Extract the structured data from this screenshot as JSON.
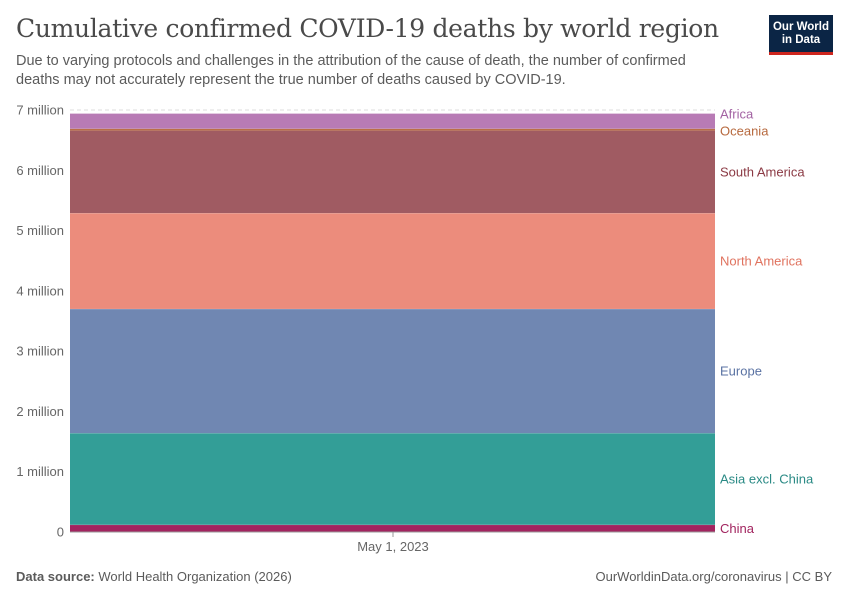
{
  "header": {
    "title": "Cumulative confirmed COVID-19 deaths by world region",
    "subtitle": "Due to varying protocols and challenges in the attribution of the cause of death, the number of confirmed deaths may not accurately represent the true number of deaths caused by COVID-19."
  },
  "logo": {
    "line1": "Our World",
    "line2": "in Data",
    "bg": "#0b2545",
    "accent": "#ce261e"
  },
  "footer": {
    "source_label": "Data source:",
    "source_value": "World Health Organization (2026)",
    "link": "OurWorldinData.org/coronavirus | CC BY"
  },
  "chart_data": {
    "type": "area",
    "stacked": true,
    "x_label": "May 1, 2023",
    "ylim": [
      0,
      7000000
    ],
    "y_ticks": [
      {
        "value": 0,
        "label": "0"
      },
      {
        "value": 1000000,
        "label": "1 million"
      },
      {
        "value": 2000000,
        "label": "2 million"
      },
      {
        "value": 3000000,
        "label": "3 million"
      },
      {
        "value": 4000000,
        "label": "4 million"
      },
      {
        "value": 5000000,
        "label": "5 million"
      },
      {
        "value": 6000000,
        "label": "6 million"
      },
      {
        "value": 7000000,
        "label": "7 million"
      }
    ],
    "grid": true,
    "series": [
      {
        "name": "China",
        "value": 120000,
        "color": "#a2245f",
        "label_color": "#a2245f"
      },
      {
        "name": "Asia excl. China",
        "value": 1520000,
        "color": "#339e97",
        "label_color": "#2a8a85"
      },
      {
        "name": "Europe",
        "value": 2060000,
        "color": "#7087b2",
        "label_color": "#5a72a3"
      },
      {
        "name": "North America",
        "value": 1590000,
        "color": "#ec8c7c",
        "label_color": "#e0735f"
      },
      {
        "name": "South America",
        "value": 1370000,
        "color": "#a05b62",
        "label_color": "#8b3a44"
      },
      {
        "name": "Oceania",
        "value": 30000,
        "color": "#b7693e",
        "label_color": "#b7693e"
      },
      {
        "name": "Africa",
        "value": 250000,
        "color": "#b87bb5",
        "label_color": "#a363a3"
      }
    ]
  }
}
